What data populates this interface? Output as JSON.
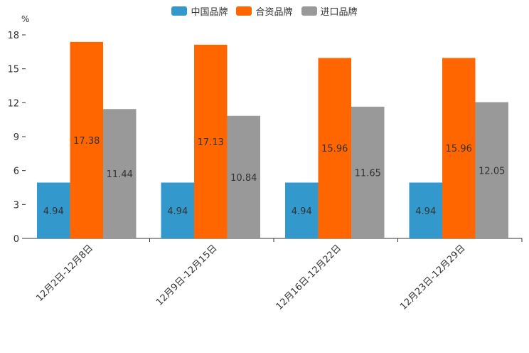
{
  "chart_data": {
    "type": "bar",
    "title": "",
    "ylabel": "%",
    "xlabel": "",
    "ylim": [
      0,
      18
    ],
    "yticks": [
      0,
      3,
      6,
      9,
      12,
      15,
      18
    ],
    "categories": [
      "12月2日-12月8日",
      "12月9日-12月15日",
      "12月16日-12月22日",
      "12月23日-12月29日"
    ],
    "series": [
      {
        "name": "中国品牌",
        "color": "#3399cc",
        "values": [
          4.94,
          4.94,
          4.94,
          4.94
        ]
      },
      {
        "name": "合资品牌",
        "color": "#ff6600",
        "values": [
          17.38,
          17.13,
          15.96,
          15.96
        ]
      },
      {
        "name": "进口品牌",
        "color": "#999999",
        "values": [
          11.44,
          10.84,
          11.65,
          12.05
        ]
      }
    ],
    "legend_position": "top-center"
  }
}
